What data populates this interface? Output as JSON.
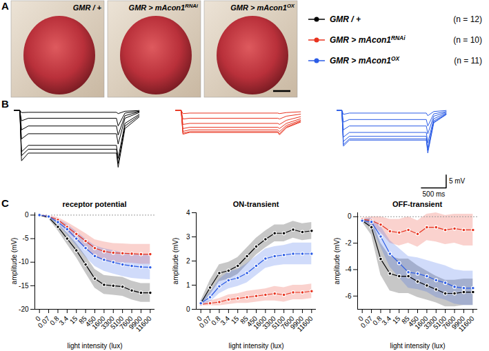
{
  "panel_A": {
    "letter": "A",
    "images": [
      {
        "name": "GMR / +"
      },
      {
        "name": "GMR > mAcon1",
        "superscript": "RNAi"
      },
      {
        "name": "GMR > mAcon1",
        "superscript": "OX"
      }
    ]
  },
  "legend": {
    "series": [
      {
        "name": "GMR / +",
        "color": "#000000",
        "n_label": "(n = 12)"
      },
      {
        "name": "GMR > mAcon1",
        "superscript": "RNAi",
        "color": "#e8321e",
        "n_label": "(n = 10)"
      },
      {
        "name": "GMR > mAcon1",
        "superscript": "OX",
        "color": "#2b5ce6",
        "n_label": "(n = 11)"
      }
    ]
  },
  "panel_B": {
    "letter": "B",
    "type": "line",
    "tick_labels": false,
    "xlim": [
      0,
      2500
    ],
    "ylim": [
      -30,
      1
    ],
    "x": [
      0,
      100,
      130,
      250,
      1800,
      1830,
      1950,
      2200
    ],
    "scale_bar": {
      "mV": 5,
      "mV_label": "5 mV",
      "ms": 500,
      "ms_label": "500 ms"
    },
    "genotypes": [
      {
        "color": "#000000",
        "traces": [
          [
            0,
            0,
            -0.8,
            -0.7,
            -0.7,
            -1.2,
            -0.3,
            0
          ],
          [
            0,
            0,
            -4,
            -3,
            -3,
            -6,
            -1,
            -0.3
          ],
          [
            0,
            0,
            -7.5,
            -6,
            -6,
            -9.5,
            -2,
            -0.5
          ],
          [
            0,
            0,
            -11,
            -9,
            -9,
            -13,
            -3,
            -0.8
          ],
          [
            0,
            0,
            -16,
            -13.5,
            -13.5,
            -18.5,
            -5,
            -1.5
          ],
          [
            0,
            0,
            -17.5,
            -15,
            -15,
            -20.5,
            -6,
            -2
          ],
          [
            0,
            0,
            -19.5,
            -16.5,
            -16.5,
            -22,
            -7,
            -2.5
          ]
        ]
      },
      {
        "color": "#e8321e",
        "traces": [
          [
            0,
            0,
            -1.2,
            -1,
            -1,
            -1.2,
            -0.8,
            -0.5
          ],
          [
            0,
            0,
            -3.3,
            -3,
            -3,
            -3.3,
            -2.2,
            -1.4
          ],
          [
            0,
            0,
            -5.4,
            -5,
            -5,
            -5.4,
            -3.8,
            -2.4
          ],
          [
            0,
            0,
            -7,
            -6.5,
            -6.5,
            -7,
            -5,
            -3.2
          ],
          [
            0,
            0,
            -8.1,
            -7.5,
            -7.5,
            -8.2,
            -5.8,
            -3.8
          ],
          [
            0,
            0,
            -8.8,
            -8.2,
            -8.2,
            -9,
            -6.4,
            -4.2
          ],
          [
            0,
            0,
            -9.2,
            -8.5,
            -8.5,
            -9.4,
            -6.7,
            -4.5
          ]
        ]
      },
      {
        "color": "#2b5ce6",
        "traces": [
          [
            0,
            0,
            -1.5,
            -1,
            -1,
            -2,
            -0.4,
            0
          ],
          [
            0,
            0,
            -4.5,
            -3.5,
            -3.5,
            -6,
            -1.3,
            -0.4
          ],
          [
            0,
            0,
            -7.5,
            -6,
            -6,
            -9,
            -2.2,
            -0.7
          ],
          [
            0,
            0,
            -10.3,
            -8.5,
            -8.5,
            -12.5,
            -3.2,
            -1
          ],
          [
            0,
            0,
            -12,
            -10,
            -10,
            -14.5,
            -4,
            -1.3
          ],
          [
            0,
            0,
            -13.2,
            -11,
            -11,
            -15.5,
            -4.5,
            -1.5
          ],
          [
            0,
            0,
            -13.8,
            -11.5,
            -11.5,
            -16.5,
            -4.8,
            -1.6
          ]
        ]
      }
    ]
  },
  "panel_C": {
    "letter": "C"
  },
  "chart_data": [
    {
      "type": "line",
      "title": "receptor potential",
      "x_label": "light intensity (lux)",
      "y_label": "amplitude (mV)",
      "categories": [
        "0",
        "0.07",
        "0.8",
        "3.4",
        "15",
        "85",
        "450",
        "1600",
        "3300",
        "5100",
        "7600",
        "9900",
        "11600"
      ],
      "ylim": [
        -20,
        0.5
      ],
      "yticks": [
        -20,
        -15,
        -10,
        -5,
        0
      ],
      "marker": "circle",
      "series": [
        {
          "color": "#000000",
          "values": [
            0,
            -0.5,
            -2.5,
            -5,
            -7.5,
            -10.5,
            -13.5,
            -14.8,
            -15,
            -15.2,
            -16,
            -16.5,
            -16.5
          ],
          "band_lower": [
            0,
            -0.8,
            -3.3,
            -6.2,
            -9,
            -12.3,
            -15.5,
            -16.8,
            -17,
            -17.2,
            -18,
            -18.5,
            -18.5
          ],
          "band_upper": [
            0,
            -0.2,
            -1.7,
            -3.8,
            -6,
            -8.7,
            -11.5,
            -12.8,
            -13,
            -13.2,
            -14,
            -14.5,
            -14.5
          ]
        },
        {
          "color": "#e8321e",
          "values": [
            0,
            -0.3,
            -1,
            -2.5,
            -4,
            -5.5,
            -7,
            -7.7,
            -8,
            -8.1,
            -8.2,
            -8.3,
            -8.3
          ],
          "band_lower": [
            0,
            -0.5,
            -1.5,
            -3.5,
            -5.3,
            -7.1,
            -8.8,
            -9.7,
            -10,
            -10.1,
            -10.2,
            -10.4,
            -10.4
          ],
          "band_upper": [
            0,
            -0.1,
            -0.5,
            -1.5,
            -2.7,
            -3.9,
            -5.2,
            -5.7,
            -6,
            -6.1,
            -6.2,
            -6.2,
            -6.2
          ]
        },
        {
          "color": "#2b5ce6",
          "values": [
            0,
            -0.3,
            -1.5,
            -3,
            -5,
            -7,
            -8.7,
            -9.5,
            -10,
            -10.5,
            -10.8,
            -11,
            -11.1
          ],
          "band_lower": [
            0,
            -0.5,
            -2.1,
            -4.1,
            -6.5,
            -8.9,
            -10.9,
            -11.9,
            -12.5,
            -13,
            -13.4,
            -13.6,
            -13.7
          ],
          "band_upper": [
            0,
            -0.1,
            -0.9,
            -1.9,
            -3.5,
            -5.1,
            -6.5,
            -7.1,
            -7.5,
            -8,
            -8.2,
            -8.4,
            -8.5
          ]
        }
      ]
    },
    {
      "type": "line",
      "title": "ON-transient",
      "x_label": "light intensity (lux)",
      "y_label": "amplitude (mV)",
      "categories": [
        "0",
        "0.07",
        "0.8",
        "3.4",
        "15",
        "85",
        "450",
        "1600",
        "3300",
        "5100",
        "7600",
        "9900",
        "11600"
      ],
      "ylim": [
        0,
        4
      ],
      "yticks": [
        0,
        1,
        2,
        3,
        4
      ],
      "marker": "circle",
      "series": [
        {
          "color": "#000000",
          "values": [
            0.25,
            0.9,
            1.5,
            1.6,
            1.8,
            2.2,
            2.6,
            2.9,
            3.15,
            3.15,
            3.3,
            3.2,
            3.25
          ],
          "band_lower": [
            0.15,
            0.6,
            1.15,
            1.25,
            1.45,
            1.85,
            2.25,
            2.55,
            2.8,
            2.8,
            2.95,
            2.85,
            2.9
          ],
          "band_upper": [
            0.35,
            1.2,
            1.85,
            1.95,
            2.15,
            2.55,
            2.95,
            3.25,
            3.5,
            3.5,
            3.65,
            3.55,
            3.6
          ]
        },
        {
          "color": "#e8321e",
          "values": [
            0.2,
            0.25,
            0.3,
            0.4,
            0.45,
            0.5,
            0.55,
            0.6,
            0.65,
            0.6,
            0.7,
            0.7,
            0.75
          ],
          "band_lower": [
            0.15,
            0.15,
            0.15,
            0.2,
            0.25,
            0.25,
            0.3,
            0.35,
            0.35,
            0.3,
            0.4,
            0.4,
            0.45
          ],
          "band_upper": [
            0.25,
            0.35,
            0.45,
            0.6,
            0.65,
            0.75,
            0.8,
            0.85,
            0.95,
            0.9,
            1,
            1,
            1.05
          ]
        },
        {
          "color": "#2b5ce6",
          "values": [
            0.25,
            0.5,
            0.95,
            1.2,
            1.3,
            1.5,
            1.8,
            2.1,
            2.2,
            2.25,
            2.3,
            2.3,
            2.3
          ],
          "band_lower": [
            0.15,
            0.3,
            0.65,
            0.85,
            0.95,
            1.1,
            1.4,
            1.7,
            1.8,
            1.85,
            1.85,
            1.85,
            1.85
          ],
          "band_upper": [
            0.35,
            0.7,
            1.25,
            1.55,
            1.65,
            1.9,
            2.2,
            2.5,
            2.6,
            2.65,
            2.75,
            2.75,
            2.75
          ]
        }
      ]
    },
    {
      "type": "line",
      "title": "OFF-transient",
      "x_label": "light intensity (lux)",
      "y_label": "amplitude (mV)",
      "categories": [
        "0",
        "0.07",
        "0.8",
        "3.4",
        "15",
        "85",
        "450",
        "1600",
        "3300",
        "5100",
        "7600",
        "9900",
        "11600"
      ],
      "ylim": [
        -7,
        0.3
      ],
      "yticks": [
        -6,
        -4,
        -2,
        0
      ],
      "marker": "circle",
      "series": [
        {
          "color": "#000000",
          "values": [
            -0.3,
            -0.8,
            -3.2,
            -4.3,
            -4.5,
            -4.5,
            -4.9,
            -5.2,
            -5.5,
            -5.8,
            -5.8,
            -5.7,
            -5.7
          ],
          "band_lower": [
            -0.4,
            -1.4,
            -4.4,
            -5.6,
            -5.8,
            -5.8,
            -6.1,
            -6.3,
            -6.5,
            -6.8,
            -6.8,
            -6.7,
            -6.7
          ],
          "band_upper": [
            -0.2,
            -0.2,
            -2,
            -3,
            -3.2,
            -3.2,
            -3.7,
            -4.1,
            -4.5,
            -4.8,
            -4.8,
            -4.7,
            -4.7
          ]
        },
        {
          "color": "#e8321e",
          "values": [
            -0.2,
            -0.3,
            -0.6,
            -1.1,
            -1.2,
            -1,
            -1.3,
            -0.8,
            -0.8,
            -1,
            -0.9,
            -1,
            -1
          ],
          "band_lower": [
            -0.3,
            -0.6,
            -1.2,
            -2,
            -2.2,
            -2,
            -2.3,
            -1.8,
            -1.9,
            -2.1,
            -2,
            -2.2,
            -2.2
          ],
          "band_upper": [
            -0.1,
            0,
            0,
            -0.2,
            -0.2,
            0,
            -0.3,
            0.2,
            0.3,
            0.1,
            0.2,
            0.2,
            0.2
          ]
        },
        {
          "color": "#2b5ce6",
          "values": [
            -0.3,
            -0.4,
            -1.5,
            -2.8,
            -3.5,
            -4.2,
            -4.3,
            -4.5,
            -4.8,
            -5,
            -5.3,
            -5.4,
            -5.4
          ],
          "band_lower": [
            -0.4,
            -0.7,
            -2.3,
            -3.8,
            -4.6,
            -5.4,
            -5.5,
            -5.7,
            -6.1,
            -6.3,
            -6.6,
            -6.7,
            -6.7
          ],
          "band_upper": [
            -0.2,
            -0.1,
            -0.7,
            -1.8,
            -2.4,
            -3,
            -3.1,
            -3.3,
            -3.5,
            -3.7,
            -4,
            -4.1,
            -4.1
          ]
        }
      ]
    }
  ]
}
